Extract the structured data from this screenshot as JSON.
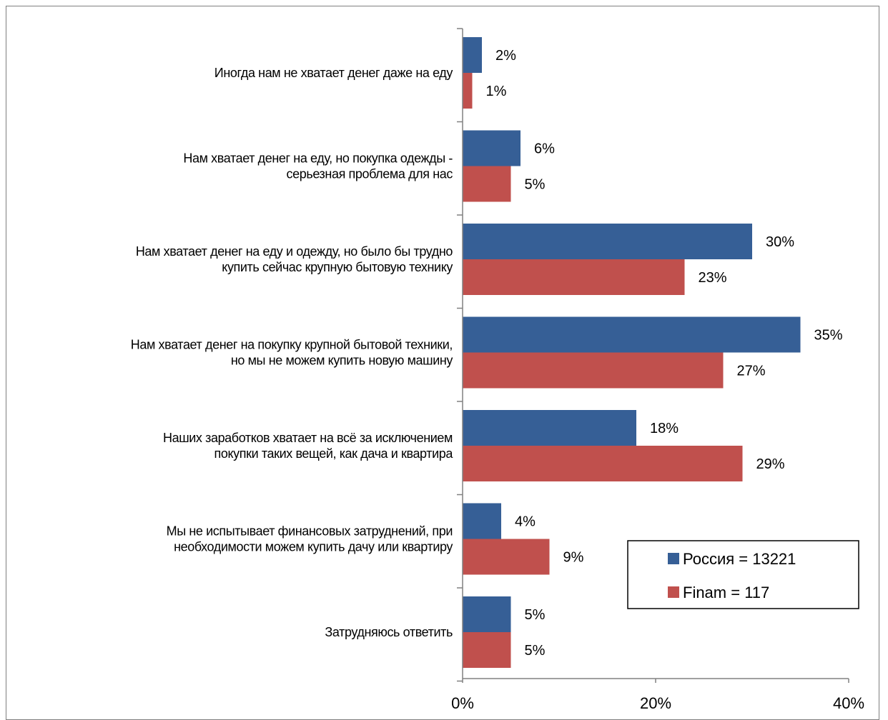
{
  "chart_data": {
    "type": "bar",
    "orientation": "horizontal",
    "categories": [
      [
        "Иногда нам не хватает денег даже на еду"
      ],
      [
        "Нам хватает денег на еду, но покупка одежды -",
        "серьезная проблема для нас"
      ],
      [
        "Нам хватает денег на еду и одежду, но было бы трудно",
        "купить сейчас крупную бытовую технику"
      ],
      [
        "Нам хватает денег на покупку крупной бытовой техники,",
        "но мы не можем купить новую машину"
      ],
      [
        "Наших заработков хватает на всё за исключением",
        "покупки таких вещей, как дача и квартира"
      ],
      [
        "Мы не испытывает финансовых затруднений, при",
        "необходимости можем купить дачу или квартиру"
      ],
      [
        "Затрудняюсь ответить"
      ]
    ],
    "series": [
      {
        "name": "Россия = 13221",
        "color": "#365f96",
        "values": [
          2,
          6,
          30,
          35,
          18,
          4,
          5
        ]
      },
      {
        "name": "Finam = 117",
        "color": "#c0504d",
        "values": [
          1,
          5,
          23,
          27,
          29,
          9,
          5
        ]
      }
    ],
    "value_suffix": "%",
    "xlim": [
      0,
      40
    ],
    "xticks": [
      "0%",
      "20%",
      "40%"
    ],
    "grid": false,
    "legend_position": "bottom-right"
  }
}
